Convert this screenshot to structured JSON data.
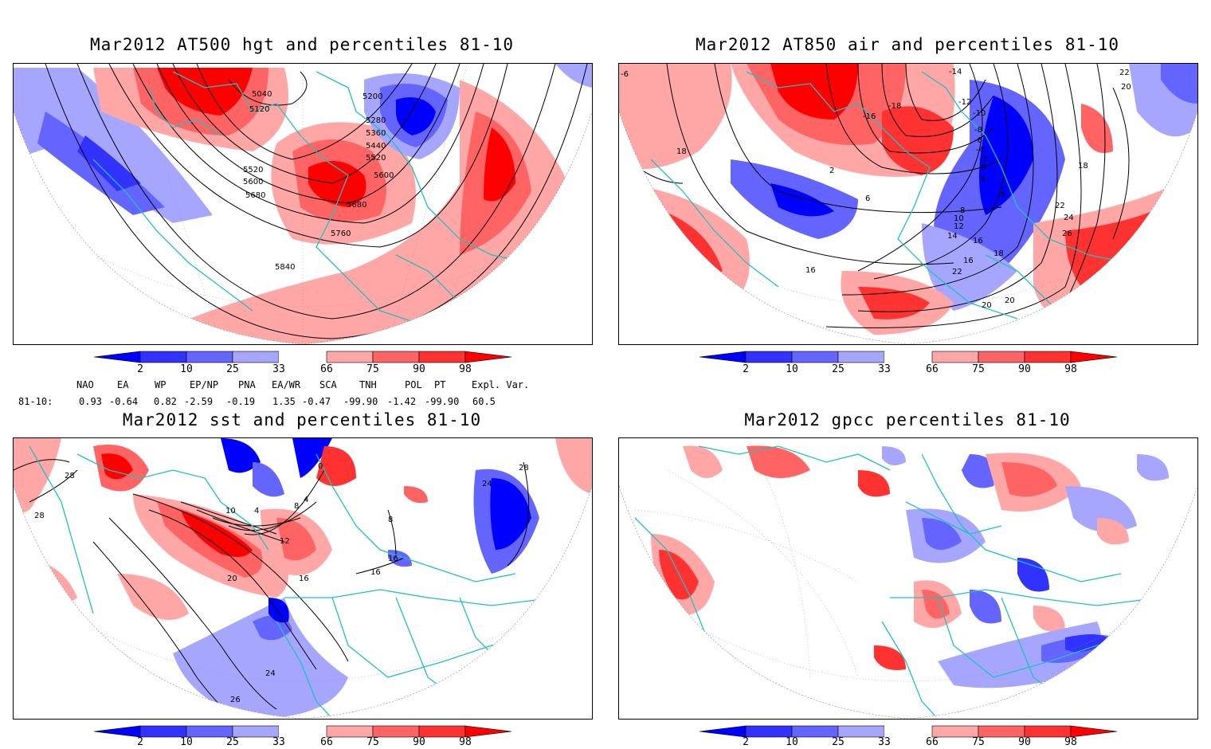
{
  "panels": [
    {
      "id": "hgt500",
      "title": "Mar2012 AT500 hgt and percentiles 81-10",
      "contour_labels": [
        "5040",
        "5120",
        "5200",
        "5280",
        "5360",
        "5440",
        "5520",
        "5520",
        "5600",
        "5600",
        "5680",
        "5680",
        "5760",
        "5840"
      ]
    },
    {
      "id": "air850",
      "title": "Mar2012 AT850 air and percentiles 81-10",
      "contour_labels": [
        "-14",
        "-12",
        "-10",
        "-16",
        "-18",
        "-8",
        "-6",
        "-4",
        "-2",
        "0",
        "2",
        "4",
        "6",
        "8",
        "10",
        "12",
        "14",
        "16",
        "18",
        "16",
        "18",
        "18",
        "20",
        "20",
        "22",
        "20",
        "22",
        "22",
        "24",
        "26",
        "6",
        "16",
        "-6"
      ]
    },
    {
      "id": "sst",
      "title": "Mar2012 sst and percentiles 81-10",
      "contour_labels": [
        "0",
        "4",
        "4",
        "8",
        "8",
        "12",
        "16",
        "16",
        "20",
        "24",
        "26",
        "28",
        "28",
        "24",
        "28",
        "10",
        "16"
      ]
    },
    {
      "id": "gpcc",
      "title": "Mar2012 gpcc percentiles 81-10",
      "contour_labels": []
    }
  ],
  "colorbar": {
    "ticks": [
      "2",
      "10",
      "25",
      "33",
      "66",
      "75",
      "90",
      "98"
    ],
    "colors": {
      "below2": "#0000ff",
      "b2_10": "#3232ff",
      "b10_25": "#6464ff",
      "b25_33": "#a6a6ff",
      "neutral": "#ffffff",
      "a66_75": "#ffa6a6",
      "a75_90": "#ff6464",
      "a90_98": "#ff3232",
      "above98": "#ff0000"
    }
  },
  "indices": {
    "names": [
      "NAO",
      "EA",
      "WP",
      "EP/NP",
      "PNA",
      "EA/WR",
      "SCA",
      "TNH",
      "POL",
      "PT",
      "Expl. Var."
    ],
    "row_label": "81-10:",
    "values": [
      "0.93",
      "-0.64",
      "0.82",
      "-2.59",
      "-0.19",
      "1.35",
      "-0.47",
      "-99.90",
      "-1.42",
      "-99.90",
      "60.5"
    ]
  },
  "colors": {
    "coast": "#20c0c0",
    "contour": "#000000",
    "grid": "#999999"
  }
}
